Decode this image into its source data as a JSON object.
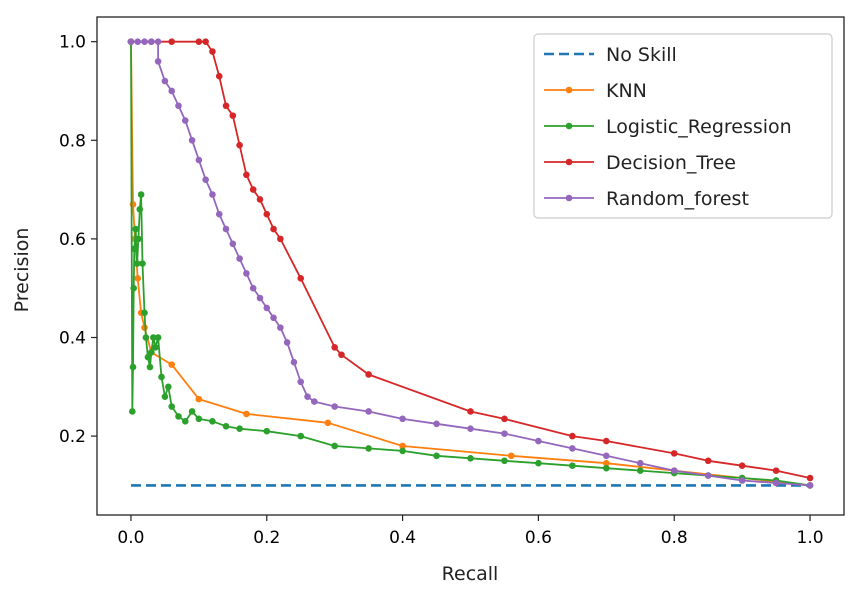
{
  "chart_data": {
    "type": "line",
    "title": "",
    "xlabel": "Recall",
    "ylabel": "Precision",
    "xlim": [
      -0.05,
      1.05
    ],
    "ylim": [
      0.04,
      1.05
    ],
    "xticks": [
      0.0,
      0.2,
      0.4,
      0.6,
      0.8,
      1.0
    ],
    "xtick_labels": [
      "0.0",
      "0.2",
      "0.4",
      "0.6",
      "0.8",
      "1.0"
    ],
    "yticks": [
      0.2,
      0.4,
      0.6,
      0.8,
      1.0
    ],
    "ytick_labels": [
      "0.2",
      "0.4",
      "0.6",
      "0.8",
      "1.0"
    ],
    "grid": false,
    "legend_position": "top-right",
    "series": [
      {
        "name": "No Skill",
        "color": "#1f77b4",
        "style": "dashed",
        "markers": false,
        "x": [
          0.0,
          1.0
        ],
        "y": [
          0.1,
          0.1
        ]
      },
      {
        "name": "KNN",
        "color": "#ff7f0e",
        "style": "solid",
        "markers": true,
        "x": [
          0.0,
          0.003,
          0.006,
          0.01,
          0.015,
          0.02,
          0.03,
          0.06,
          0.1,
          0.17,
          0.29,
          0.4,
          0.56,
          0.7,
          0.8,
          0.9,
          1.0
        ],
        "y": [
          1.0,
          0.67,
          0.6,
          0.52,
          0.45,
          0.42,
          0.37,
          0.345,
          0.275,
          0.245,
          0.227,
          0.18,
          0.16,
          0.145,
          0.13,
          0.115,
          0.1
        ]
      },
      {
        "name": "Logistic_Regression",
        "color": "#2ca02c",
        "style": "solid",
        "markers": true,
        "x": [
          0.0,
          0.002,
          0.003,
          0.004,
          0.005,
          0.007,
          0.009,
          0.011,
          0.013,
          0.015,
          0.017,
          0.02,
          0.022,
          0.025,
          0.028,
          0.03,
          0.033,
          0.036,
          0.04,
          0.045,
          0.05,
          0.055,
          0.06,
          0.07,
          0.08,
          0.09,
          0.1,
          0.12,
          0.14,
          0.16,
          0.2,
          0.25,
          0.3,
          0.35,
          0.4,
          0.45,
          0.5,
          0.55,
          0.6,
          0.65,
          0.7,
          0.75,
          0.8,
          0.85,
          0.9,
          0.95,
          1.0
        ],
        "y": [
          1.0,
          0.25,
          0.34,
          0.5,
          0.58,
          0.62,
          0.55,
          0.6,
          0.66,
          0.69,
          0.55,
          0.45,
          0.4,
          0.36,
          0.34,
          0.37,
          0.4,
          0.38,
          0.4,
          0.32,
          0.28,
          0.3,
          0.26,
          0.24,
          0.23,
          0.25,
          0.235,
          0.23,
          0.22,
          0.215,
          0.21,
          0.2,
          0.18,
          0.175,
          0.17,
          0.16,
          0.155,
          0.15,
          0.145,
          0.14,
          0.135,
          0.13,
          0.125,
          0.12,
          0.115,
          0.11,
          0.1
        ]
      },
      {
        "name": "Decision_Tree",
        "color": "#d62728",
        "style": "solid",
        "markers": true,
        "x": [
          0.0,
          0.03,
          0.06,
          0.1,
          0.11,
          0.12,
          0.13,
          0.14,
          0.15,
          0.16,
          0.17,
          0.18,
          0.19,
          0.2,
          0.21,
          0.22,
          0.25,
          0.3,
          0.31,
          0.35,
          0.5,
          0.55,
          0.65,
          0.7,
          0.8,
          0.85,
          0.9,
          0.95,
          1.0
        ],
        "y": [
          1.0,
          1.0,
          1.0,
          1.0,
          1.0,
          0.98,
          0.93,
          0.87,
          0.85,
          0.79,
          0.73,
          0.7,
          0.68,
          0.65,
          0.62,
          0.6,
          0.52,
          0.38,
          0.365,
          0.325,
          0.25,
          0.235,
          0.2,
          0.19,
          0.165,
          0.15,
          0.14,
          0.13,
          0.115
        ]
      },
      {
        "name": "Random_forest",
        "color": "#9467bd",
        "style": "solid",
        "markers": true,
        "x": [
          0.0,
          0.01,
          0.02,
          0.03,
          0.04,
          0.04,
          0.05,
          0.06,
          0.07,
          0.08,
          0.09,
          0.1,
          0.11,
          0.12,
          0.13,
          0.14,
          0.15,
          0.16,
          0.17,
          0.18,
          0.19,
          0.2,
          0.21,
          0.22,
          0.23,
          0.24,
          0.25,
          0.26,
          0.27,
          0.3,
          0.35,
          0.4,
          0.45,
          0.5,
          0.55,
          0.6,
          0.65,
          0.7,
          0.75,
          0.8,
          0.85,
          0.9,
          0.95,
          1.0
        ],
        "y": [
          1.0,
          1.0,
          1.0,
          1.0,
          1.0,
          0.96,
          0.92,
          0.9,
          0.87,
          0.84,
          0.8,
          0.76,
          0.72,
          0.69,
          0.65,
          0.62,
          0.59,
          0.56,
          0.53,
          0.5,
          0.48,
          0.46,
          0.44,
          0.42,
          0.39,
          0.35,
          0.31,
          0.28,
          0.27,
          0.26,
          0.25,
          0.235,
          0.225,
          0.215,
          0.205,
          0.19,
          0.175,
          0.16,
          0.145,
          0.13,
          0.12,
          0.11,
          0.105,
          0.1
        ]
      }
    ]
  }
}
